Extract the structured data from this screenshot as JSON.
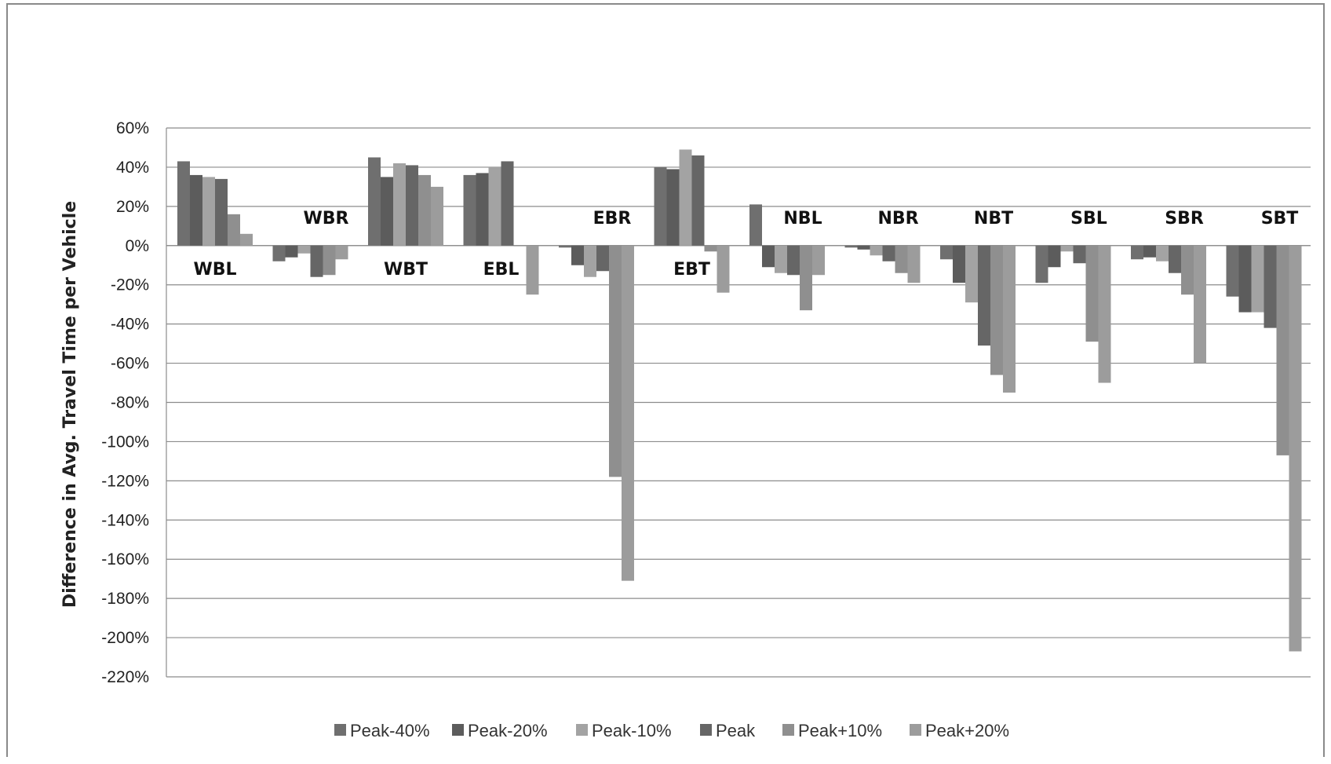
{
  "chart_data": {
    "type": "bar",
    "title": "",
    "xlabel": "",
    "ylabel": "Difference in Avg. Travel Time per Vehicle",
    "ylim": [
      -220,
      60
    ],
    "yticks": [
      60,
      40,
      20,
      0,
      -20,
      -40,
      -60,
      -80,
      -100,
      -120,
      -140,
      -160,
      -180,
      -200,
      -220
    ],
    "ytick_suffix": "%",
    "grid": true,
    "legend_position": "bottom",
    "categories": [
      "WBL",
      "WBR",
      "WBT",
      "EBL",
      "EBR",
      "EBT",
      "NBL",
      "NBR",
      "NBT",
      "SBL",
      "SBR",
      "SBT"
    ],
    "category_label_side": [
      "below",
      "above",
      "below",
      "below",
      "above",
      "below",
      "above",
      "above",
      "above",
      "above",
      "above",
      "above"
    ],
    "series": [
      {
        "name": "Peak-40%",
        "color": "#6f6f6f",
        "values": [
          43,
          -8,
          45,
          36,
          -1,
          40,
          21,
          -1,
          -7,
          -19,
          -7,
          -26
        ]
      },
      {
        "name": "Peak-20%",
        "color": "#5c5c5c",
        "values": [
          36,
          -6,
          35,
          37,
          -10,
          39,
          -11,
          -2,
          -19,
          -11,
          -6,
          -34
        ]
      },
      {
        "name": "Peak-10%",
        "color": "#a3a3a3",
        "values": [
          35,
          -4,
          42,
          40,
          -16,
          49,
          -14,
          -5,
          -29,
          -3,
          -8,
          -34
        ]
      },
      {
        "name": "Peak",
        "color": "#666666",
        "values": [
          34,
          -16,
          41,
          43,
          -13,
          46,
          -15,
          -8,
          -51,
          -9,
          -14,
          -42
        ]
      },
      {
        "name": "Peak+10%",
        "color": "#8f8f8f",
        "values": [
          16,
          -15,
          36,
          0,
          -118,
          -3,
          -33,
          -14,
          -66,
          -49,
          -25,
          -107
        ]
      },
      {
        "name": "Peak+20%",
        "color": "#9c9c9c",
        "values": [
          6,
          -7,
          30,
          -25,
          -171,
          -24,
          -15,
          -19,
          -75,
          -70,
          -60,
          -207
        ]
      }
    ]
  }
}
